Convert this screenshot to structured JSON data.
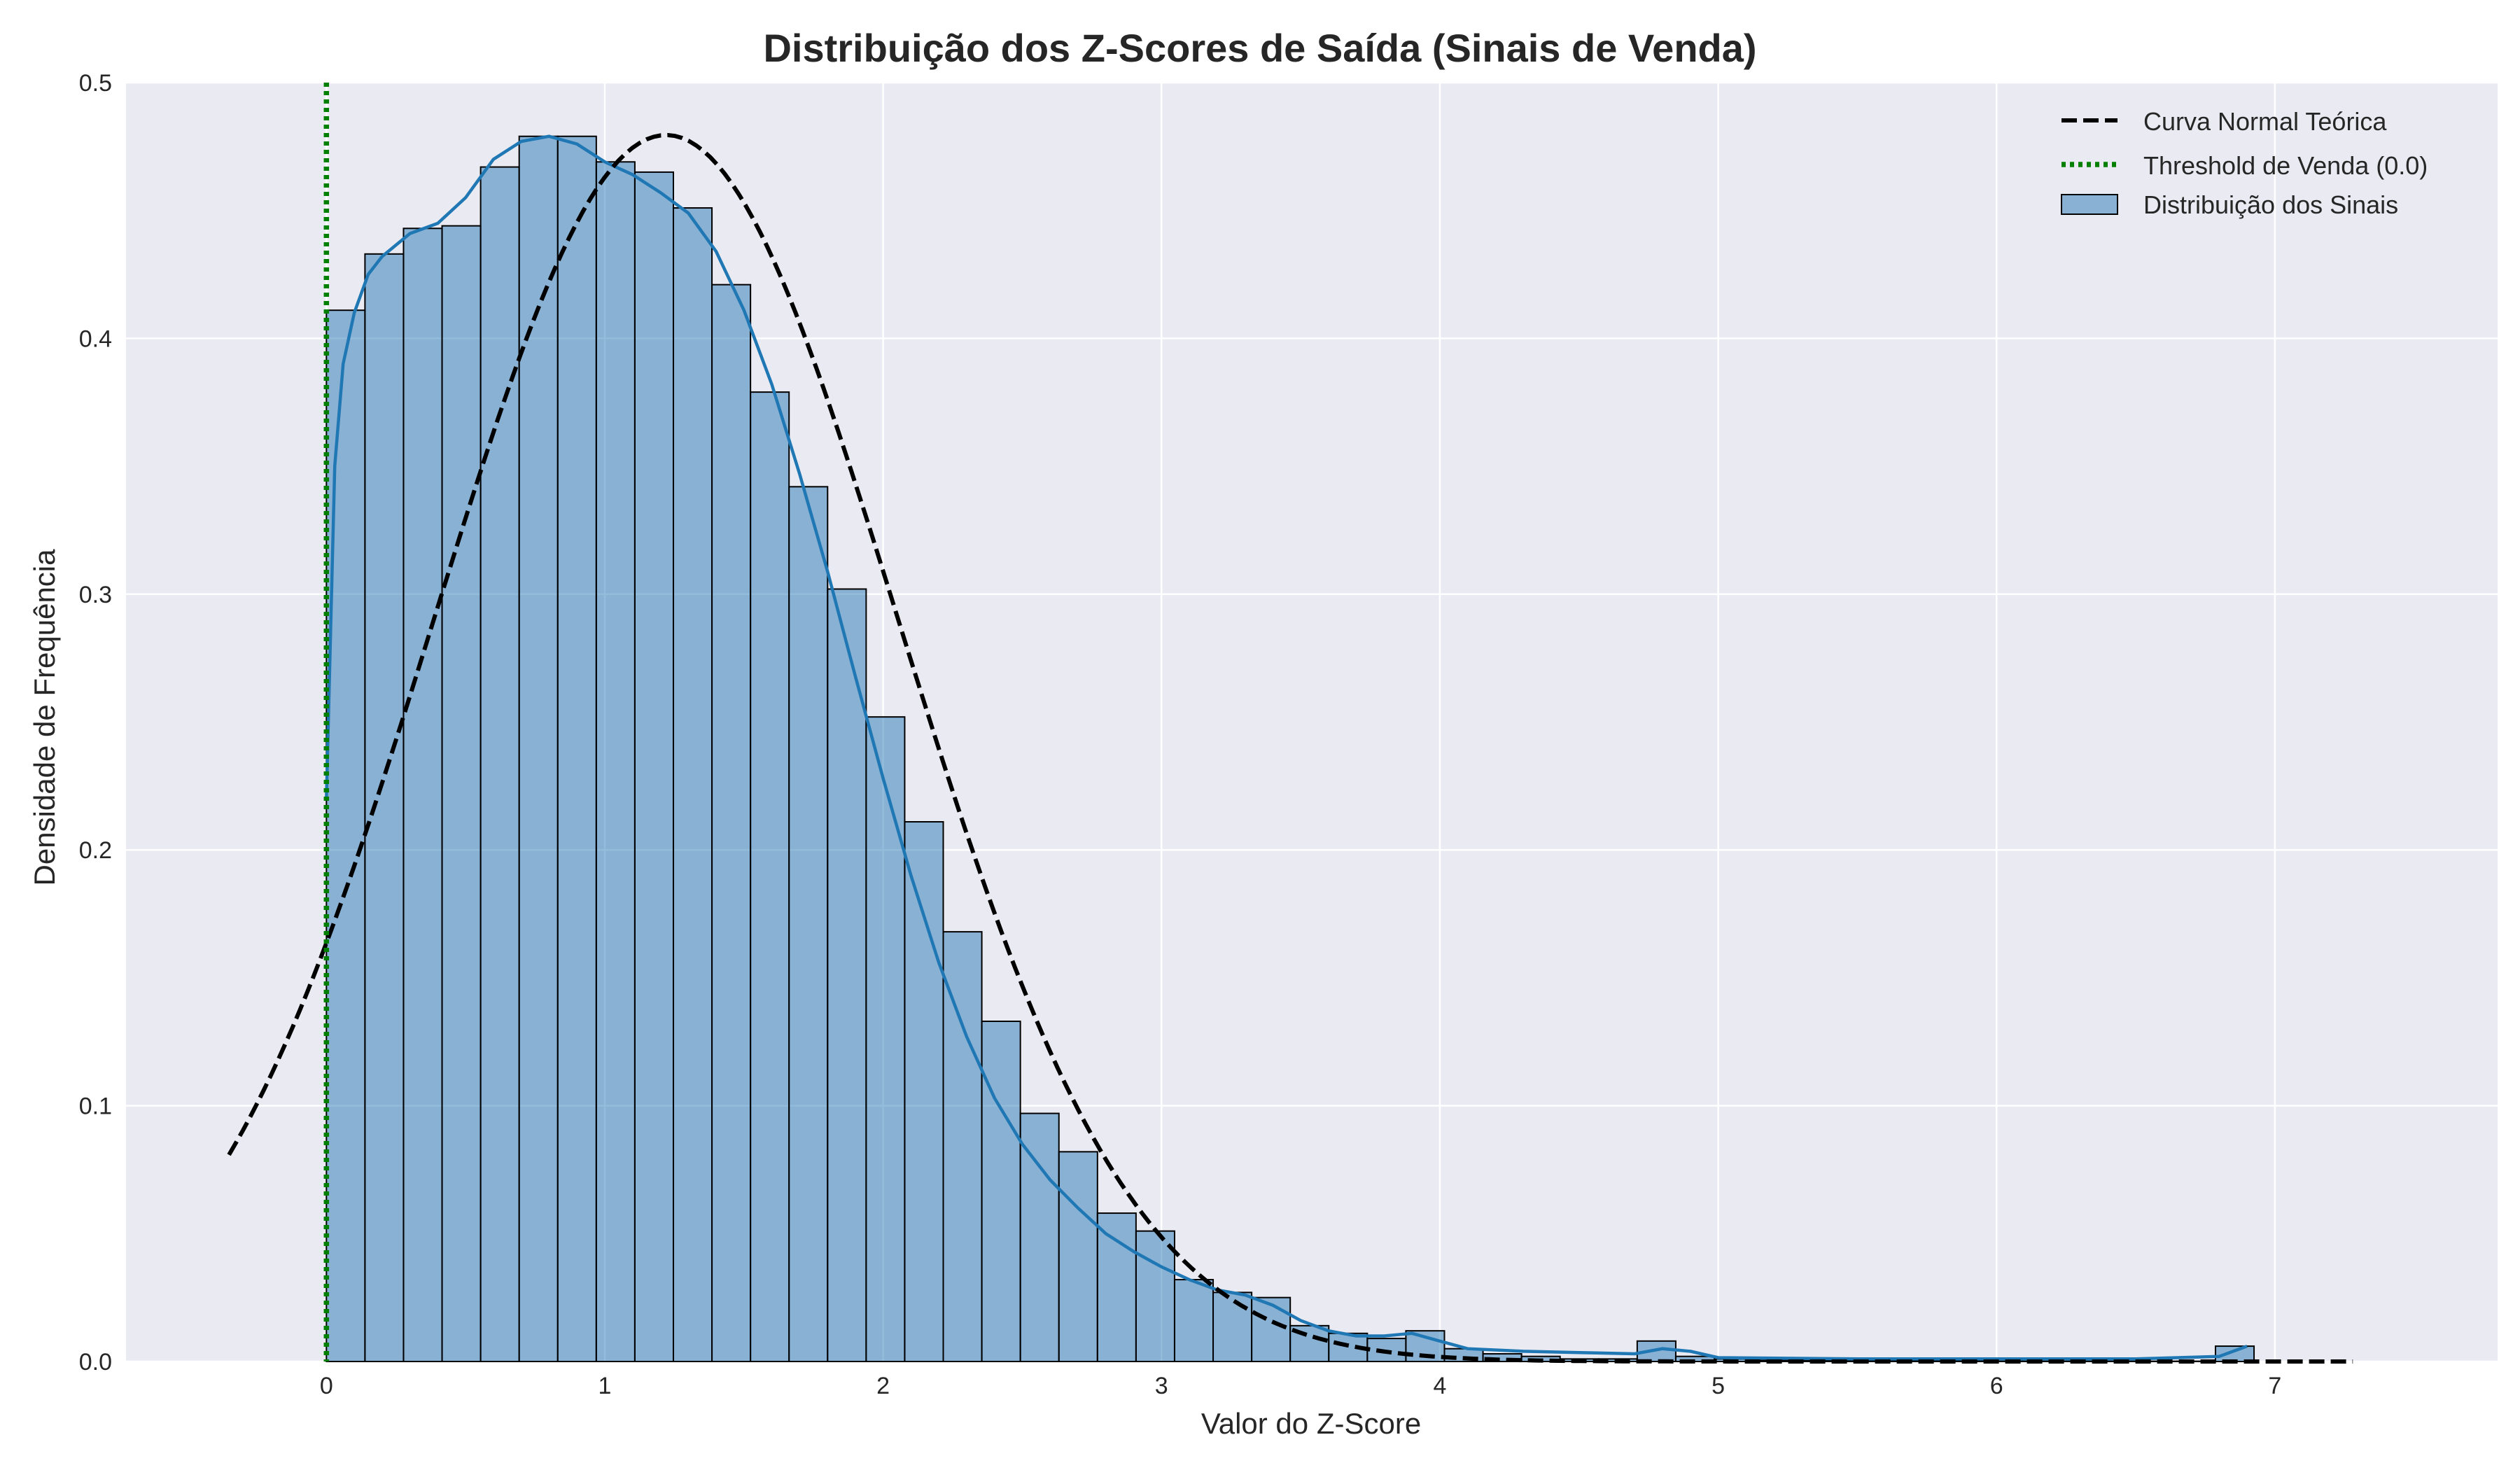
{
  "chart_data": {
    "type": "histogram",
    "title": "Distribuição dos Z-Scores de Saída (Sinais de Venda)",
    "xlabel": "Valor do Z-Score",
    "ylabel": "Densidade de Frequência",
    "xlim": [
      -0.72,
      7.8
    ],
    "ylim": [
      0,
      0.5
    ],
    "x_ticks": [
      "0",
      "1",
      "2",
      "3",
      "4",
      "5",
      "6",
      "7"
    ],
    "y_ticks": [
      "0.0",
      "0.1",
      "0.2",
      "0.3",
      "0.4",
      "0.5"
    ],
    "grid": true,
    "legend_position": "top-right",
    "legend": [
      "Curva Normal Teórica",
      "Threshold de Venda (0.0)",
      "Distribuição dos Sinais"
    ],
    "histogram": {
      "name": "Distribuição dos Sinais",
      "color": "#2878b5",
      "bin_start": 0.0,
      "bin_width": 0.1385,
      "values": [
        0.411,
        0.433,
        0.443,
        0.444,
        0.467,
        0.479,
        0.479,
        0.469,
        0.465,
        0.451,
        0.421,
        0.379,
        0.342,
        0.302,
        0.252,
        0.211,
        0.168,
        0.133,
        0.097,
        0.082,
        0.058,
        0.051,
        0.032,
        0.027,
        0.025,
        0.014,
        0.011,
        0.009,
        0.012,
        0.005,
        0.003,
        0.002,
        0.001,
        0.001,
        0.008,
        0.002,
        0.001,
        0.0005,
        0.0005,
        0.0003,
        0.0003,
        0.0002,
        0.0002,
        0.0001,
        0.0001,
        0.0001,
        0.0001,
        0.0001,
        0.0001,
        0.006
      ]
    },
    "kde": {
      "color": "#1f77b4",
      "x": [
        0,
        0.03,
        0.06,
        0.1,
        0.15,
        0.2,
        0.3,
        0.4,
        0.5,
        0.6,
        0.7,
        0.8,
        0.9,
        1.0,
        1.1,
        1.2,
        1.3,
        1.4,
        1.5,
        1.6,
        1.7,
        1.8,
        1.9,
        2.0,
        2.1,
        2.2,
        2.3,
        2.4,
        2.5,
        2.6,
        2.7,
        2.8,
        2.9,
        3.0,
        3.1,
        3.2,
        3.3,
        3.4,
        3.5,
        3.6,
        3.7,
        3.8,
        3.9,
        4.0,
        4.1,
        4.3,
        4.5,
        4.7,
        4.8,
        4.9,
        5.0,
        5.5,
        6.0,
        6.5,
        6.8,
        6.9
      ],
      "y": [
        0.22,
        0.35,
        0.39,
        0.41,
        0.425,
        0.432,
        0.441,
        0.445,
        0.455,
        0.47,
        0.477,
        0.479,
        0.476,
        0.469,
        0.464,
        0.457,
        0.449,
        0.434,
        0.411,
        0.382,
        0.347,
        0.309,
        0.268,
        0.228,
        0.19,
        0.156,
        0.127,
        0.103,
        0.085,
        0.071,
        0.06,
        0.05,
        0.043,
        0.037,
        0.032,
        0.028,
        0.026,
        0.022,
        0.016,
        0.012,
        0.01,
        0.01,
        0.011,
        0.008,
        0.005,
        0.004,
        0.0035,
        0.003,
        0.005,
        0.004,
        0.0015,
        0.001,
        0.001,
        0.001,
        0.002,
        0.006
      ]
    },
    "normal_curve": {
      "name": "Curva Normal Teórica",
      "color": "#000000",
      "mean": 1.22,
      "std": 0.832,
      "x_range": [
        -0.35,
        7.28
      ]
    },
    "threshold": {
      "name": "Threshold de Venda (0.0)",
      "color": "#007f00",
      "x": 0.0
    }
  }
}
